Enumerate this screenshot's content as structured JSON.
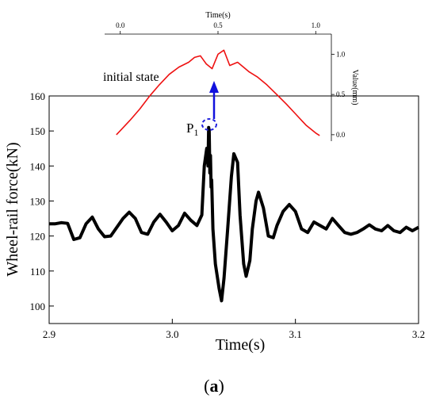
{
  "chart_data": [
    {
      "id": "main",
      "type": "line",
      "xlabel": "Time(s)",
      "ylabel": "Wheel-rail force(kN)",
      "xlim": [
        2.9,
        3.2
      ],
      "ylim": [
        95,
        160
      ],
      "xticks": [
        2.9,
        3.0,
        3.1,
        3.2
      ],
      "xtick_labels": [
        "2.9",
        "3.0",
        "3.1",
        "3.2"
      ],
      "yticks": [
        100,
        110,
        120,
        130,
        140,
        150,
        160
      ],
      "ytick_labels": [
        "100",
        "110",
        "120",
        "130",
        "140",
        "150",
        "160"
      ],
      "color": "#000000",
      "grid": false,
      "series": [
        {
          "x": [
            2.9,
            2.905,
            2.91,
            2.915,
            2.92,
            2.925,
            2.93,
            2.935,
            2.94,
            2.945,
            2.95,
            2.955,
            2.96,
            2.965,
            2.97,
            2.975,
            2.98,
            2.985,
            2.99,
            2.995,
            3.0,
            3.005,
            3.01,
            3.015,
            3.02,
            3.024,
            3.026,
            3.028,
            3.029,
            3.0295,
            3.03,
            3.0305,
            3.031,
            3.0315,
            3.032,
            3.033,
            3.035,
            3.038,
            3.04,
            3.042,
            3.045,
            3.048,
            3.05,
            3.053,
            3.055,
            3.058,
            3.06,
            3.063,
            3.065,
            3.068,
            3.07,
            3.074,
            3.078,
            3.082,
            3.085,
            3.09,
            3.095,
            3.1,
            3.105,
            3.11,
            3.115,
            3.12,
            3.125,
            3.13,
            3.135,
            3.14,
            3.145,
            3.15,
            3.155,
            3.16,
            3.165,
            3.17,
            3.175,
            3.18,
            3.185,
            3.19,
            3.195,
            3.2
          ],
          "y": [
            123.5,
            123.5,
            123.8,
            123.6,
            119,
            119.5,
            123.5,
            125.4,
            122,
            119.8,
            120,
            122.5,
            125,
            126.8,
            125,
            121,
            120.5,
            124,
            126.2,
            124,
            121.5,
            123,
            126.5,
            124.5,
            123,
            126,
            140,
            145,
            140,
            151,
            150,
            138,
            143,
            134,
            136,
            122,
            112,
            105,
            101.5,
            108,
            122,
            137,
            143.5,
            141,
            126,
            112,
            108.5,
            113,
            122,
            130,
            132.5,
            128,
            120,
            119.5,
            123,
            127,
            129,
            127,
            122,
            121,
            124,
            123,
            122,
            125,
            123,
            121,
            120.5,
            121,
            122,
            123.2,
            122,
            121.5,
            123,
            121.5,
            121,
            122.5,
            121.5,
            122.5
          ]
        }
      ],
      "annotations": [
        {
          "text": "P",
          "subscript": "1",
          "x": 3.03,
          "y": 151
        }
      ]
    },
    {
      "id": "inset",
      "type": "line",
      "xlabel": "Time(s)",
      "ylabel": "Value(mm)",
      "xlim": [
        -0.08,
        1.08
      ],
      "ylim": [
        -0.08,
        1.25
      ],
      "xticks": [
        0.0,
        0.5,
        1.0
      ],
      "xtick_labels": [
        "0.0",
        "0.5",
        "1.0"
      ],
      "yticks": [
        0.0,
        0.5,
        1.0
      ],
      "ytick_labels": [
        "0.0",
        "0.5",
        "1.0"
      ],
      "x_axis_position": "top",
      "y_axis_position": "right",
      "color": "#ee1111",
      "legend_label": "initial state",
      "series": [
        {
          "x": [
            -0.02,
            0.0,
            0.05,
            0.1,
            0.15,
            0.2,
            0.25,
            0.3,
            0.35,
            0.38,
            0.41,
            0.44,
            0.47,
            0.5,
            0.53,
            0.56,
            0.6,
            0.63,
            0.66,
            0.7,
            0.75,
            0.8,
            0.85,
            0.9,
            0.95,
            1.0,
            1.02
          ],
          "y": [
            0.0,
            0.05,
            0.18,
            0.32,
            0.48,
            0.62,
            0.75,
            0.84,
            0.9,
            0.96,
            0.98,
            0.88,
            0.82,
            1.0,
            1.05,
            0.86,
            0.9,
            0.84,
            0.78,
            0.72,
            0.62,
            0.5,
            0.38,
            0.25,
            0.12,
            0.02,
            -0.01
          ]
        }
      ]
    }
  ]
}
